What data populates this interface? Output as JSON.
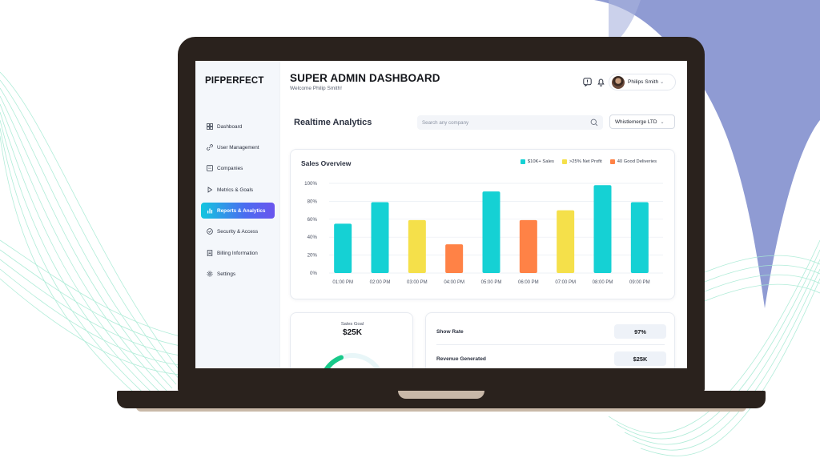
{
  "brand": {
    "logo_text": "PIFPERFECT"
  },
  "header": {
    "title": "SUPER ADMIN DASHBOARD",
    "welcome": "Welcome Philip Smith!",
    "user_name": "Philips Smith",
    "icons": [
      "chat-alert-icon",
      "bell-icon"
    ]
  },
  "sidebar": {
    "items": [
      {
        "label": "Dashboard",
        "icon": "grid-icon",
        "active": false
      },
      {
        "label": "User Management",
        "icon": "link-icon",
        "active": false
      },
      {
        "label": "Companies",
        "icon": "building-icon",
        "active": false
      },
      {
        "label": "Metrics & Goals",
        "icon": "play-icon",
        "active": false
      },
      {
        "label": "Reports & Analytics",
        "icon": "bar-chart-icon",
        "active": true
      },
      {
        "label": "Security & Access",
        "icon": "shield-check-icon",
        "active": false
      },
      {
        "label": "Billing Information",
        "icon": "receipt-icon",
        "active": false
      },
      {
        "label": "Settings",
        "icon": "gear-icon",
        "active": false
      }
    ]
  },
  "toolbar": {
    "section_title": "Realtime Analytics",
    "search_placeholder": "Search any company",
    "company_selected": "Whistlemerge LTD"
  },
  "chart_card": {
    "title": "Sales Overview"
  },
  "chart_data": {
    "type": "bar",
    "title": "Sales Overview",
    "categories": [
      "01:00 PM",
      "02:00 PM",
      "03:00 PM",
      "04:00 PM",
      "05:00 PM",
      "06:00 PM",
      "07:00 PM",
      "08:00 PM",
      "09:00 PM"
    ],
    "values": [
      55,
      79,
      59,
      32,
      91,
      59,
      70,
      98,
      79
    ],
    "bar_series": [
      "$10K+ Sales",
      "$10K+ Sales",
      ">25% Net Profit",
      "40 Good Deliveries",
      "$10K+ Sales",
      "40 Good Deliveries",
      ">25% Net Profit",
      "$10K+ Sales",
      "$10K+ Sales"
    ],
    "legend": [
      {
        "name": "$10K+ Sales",
        "color": "#15d1d4"
      },
      {
        "name": ">25% Net Profit",
        "color": "#f5e04a"
      },
      {
        "name": "40 Good Deliveries",
        "color": "#ff8246"
      }
    ],
    "yticks": [
      "0%",
      "20%",
      "40%",
      "60%",
      "80%",
      "100%"
    ],
    "ylim": [
      0,
      100
    ],
    "grid": true,
    "legend_position": "top-right"
  },
  "sales_goal": {
    "label": "Sales Goal",
    "value": "$25K"
  },
  "metrics": [
    {
      "label": "Show Rate",
      "value": "97%"
    },
    {
      "label": "Revenue Generated",
      "value": "$25K"
    }
  ],
  "colors": {
    "accent_start": "#13c6df",
    "accent_end": "#6a55ee",
    "laptop": "#2a221d",
    "bg_blob": "#8f9bd3",
    "bg_lines": "#9fe7cf"
  }
}
